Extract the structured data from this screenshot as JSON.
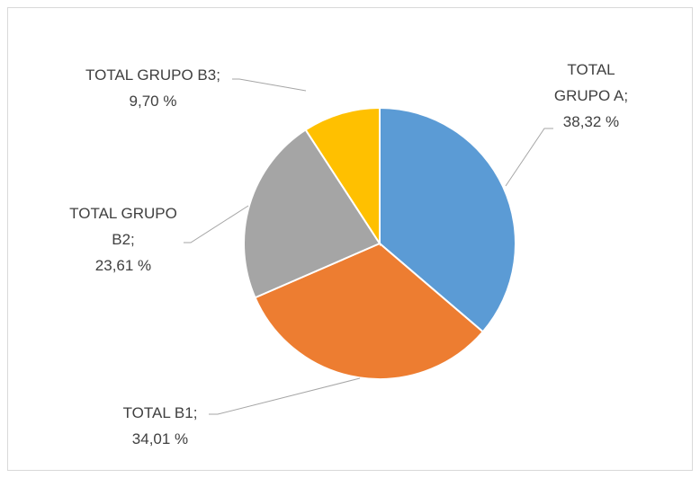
{
  "chart_data": {
    "type": "pie",
    "categories": [
      "TOTAL GRUPO A",
      "TOTAL B1",
      "TOTAL GRUPO B2",
      "TOTAL GRUPO B3"
    ],
    "values": [
      38.32,
      34.01,
      23.61,
      9.7
    ],
    "value_labels": [
      "38,32 %",
      "34,01 %",
      "23,61 %",
      "9,70 %"
    ],
    "separator": ";",
    "colors": [
      "#5b9bd5",
      "#ed7d31",
      "#a5a5a5",
      "#ffc000"
    ]
  }
}
